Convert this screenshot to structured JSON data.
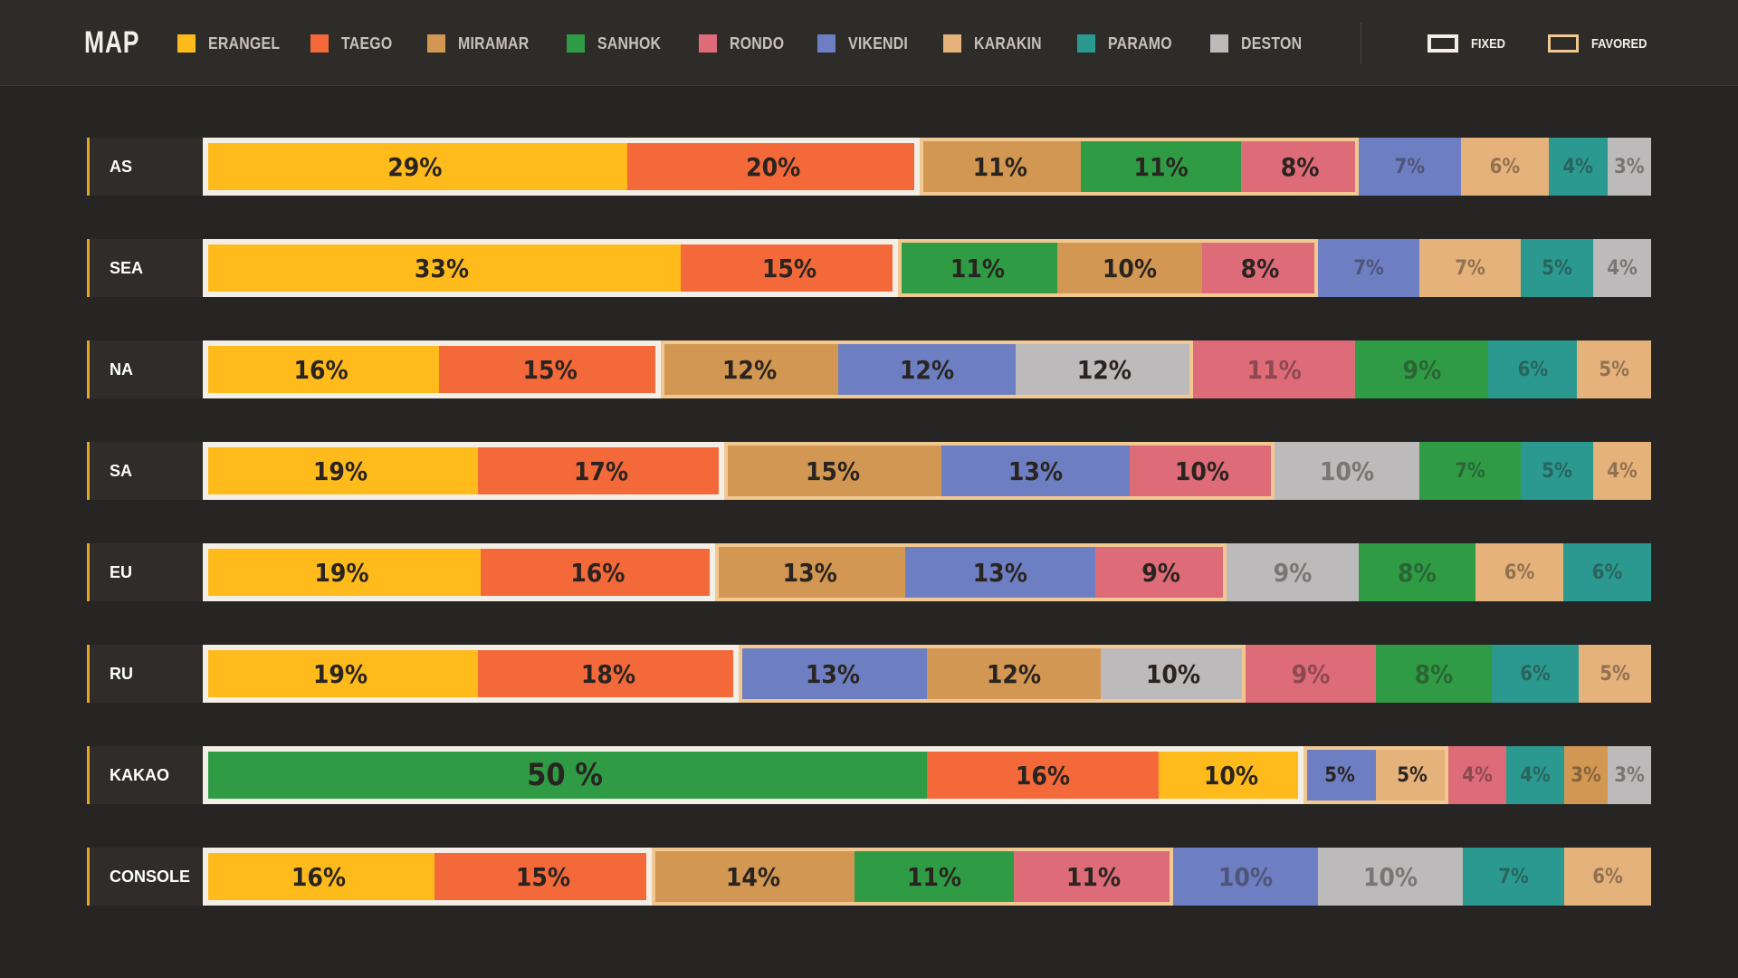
{
  "title": "MAP",
  "legend": [
    {
      "name": "ERANGEL",
      "color": "#ffbb1c"
    },
    {
      "name": "TAEGO",
      "color": "#f4693a"
    },
    {
      "name": "MIRAMAR",
      "color": "#d29752"
    },
    {
      "name": "SANHOK",
      "color": "#2f9c45"
    },
    {
      "name": "RONDO",
      "color": "#de6b78"
    },
    {
      "name": "VIKENDI",
      "color": "#6d7fc2"
    },
    {
      "name": "KARAKIN",
      "color": "#e6b27b"
    },
    {
      "name": "PARAMO",
      "color": "#2b9990"
    },
    {
      "name": "DESTON",
      "color": "#bdbabb"
    }
  ],
  "key": {
    "fixed": "FIXED",
    "favored": "FAVORED"
  },
  "chart_data": {
    "type": "bar",
    "orientation": "horizontal-stacked",
    "unit": "%",
    "rows": [
      {
        "label": "AS",
        "fixed": 2,
        "favored": 3,
        "segments": [
          {
            "map": "ERANGEL",
            "value": 29,
            "text": "29%"
          },
          {
            "map": "TAEGO",
            "value": 20,
            "text": "20%"
          },
          {
            "map": "MIRAMAR",
            "value": 11,
            "text": "11%"
          },
          {
            "map": "SANHOK",
            "value": 11,
            "text": "11%"
          },
          {
            "map": "RONDO",
            "value": 8,
            "text": "8%"
          },
          {
            "map": "VIKENDI",
            "value": 7,
            "text": "7%"
          },
          {
            "map": "KARAKIN",
            "value": 6,
            "text": "6%"
          },
          {
            "map": "PARAMO",
            "value": 4,
            "text": "4%"
          },
          {
            "map": "DESTON",
            "value": 3,
            "text": "3%"
          }
        ]
      },
      {
        "label": "SEA",
        "fixed": 2,
        "favored": 3,
        "segments": [
          {
            "map": "ERANGEL",
            "value": 33,
            "text": "33%"
          },
          {
            "map": "TAEGO",
            "value": 15,
            "text": "15%"
          },
          {
            "map": "SANHOK",
            "value": 11,
            "text": "11%"
          },
          {
            "map": "MIRAMAR",
            "value": 10,
            "text": "10%"
          },
          {
            "map": "RONDO",
            "value": 8,
            "text": "8%"
          },
          {
            "map": "VIKENDI",
            "value": 7,
            "text": "7%"
          },
          {
            "map": "KARAKIN",
            "value": 7,
            "text": "7%"
          },
          {
            "map": "PARAMO",
            "value": 5,
            "text": "5%"
          },
          {
            "map": "DESTON",
            "value": 4,
            "text": "4%"
          }
        ]
      },
      {
        "label": "NA",
        "fixed": 2,
        "favored": 3,
        "segments": [
          {
            "map": "ERANGEL",
            "value": 16,
            "text": "16%"
          },
          {
            "map": "TAEGO",
            "value": 15,
            "text": "15%"
          },
          {
            "map": "MIRAMAR",
            "value": 12,
            "text": "12%"
          },
          {
            "map": "VIKENDI",
            "value": 12,
            "text": "12%"
          },
          {
            "map": "DESTON",
            "value": 12,
            "text": "12%"
          },
          {
            "map": "RONDO",
            "value": 11,
            "text": "11%"
          },
          {
            "map": "SANHOK",
            "value": 9,
            "text": "9%"
          },
          {
            "map": "PARAMO",
            "value": 6,
            "text": "6%"
          },
          {
            "map": "KARAKIN",
            "value": 5,
            "text": "5%"
          }
        ]
      },
      {
        "label": "SA",
        "fixed": 2,
        "favored": 3,
        "segments": [
          {
            "map": "ERANGEL",
            "value": 19,
            "text": "19%"
          },
          {
            "map": "TAEGO",
            "value": 17,
            "text": "17%"
          },
          {
            "map": "MIRAMAR",
            "value": 15,
            "text": "15%"
          },
          {
            "map": "VIKENDI",
            "value": 13,
            "text": "13%"
          },
          {
            "map": "RONDO",
            "value": 10,
            "text": "10%"
          },
          {
            "map": "DESTON",
            "value": 10,
            "text": "10%"
          },
          {
            "map": "SANHOK",
            "value": 7,
            "text": "7%"
          },
          {
            "map": "PARAMO",
            "value": 5,
            "text": "5%"
          },
          {
            "map": "KARAKIN",
            "value": 4,
            "text": "4%"
          }
        ]
      },
      {
        "label": "EU",
        "fixed": 2,
        "favored": 3,
        "segments": [
          {
            "map": "ERANGEL",
            "value": 19,
            "text": "19%"
          },
          {
            "map": "TAEGO",
            "value": 16,
            "text": "16%"
          },
          {
            "map": "MIRAMAR",
            "value": 13,
            "text": "13%"
          },
          {
            "map": "VIKENDI",
            "value": 13,
            "text": "13%"
          },
          {
            "map": "RONDO",
            "value": 9,
            "text": "9%"
          },
          {
            "map": "DESTON",
            "value": 9,
            "text": "9%"
          },
          {
            "map": "SANHOK",
            "value": 8,
            "text": "8%"
          },
          {
            "map": "KARAKIN",
            "value": 6,
            "text": "6%"
          },
          {
            "map": "PARAMO",
            "value": 6,
            "text": "6%"
          }
        ]
      },
      {
        "label": "RU",
        "fixed": 2,
        "favored": 3,
        "segments": [
          {
            "map": "ERANGEL",
            "value": 19,
            "text": "19%"
          },
          {
            "map": "TAEGO",
            "value": 18,
            "text": "18%"
          },
          {
            "map": "VIKENDI",
            "value": 13,
            "text": "13%"
          },
          {
            "map": "MIRAMAR",
            "value": 12,
            "text": "12%"
          },
          {
            "map": "DESTON",
            "value": 10,
            "text": "10%"
          },
          {
            "map": "RONDO",
            "value": 9,
            "text": "9%"
          },
          {
            "map": "SANHOK",
            "value": 8,
            "text": "8%"
          },
          {
            "map": "PARAMO",
            "value": 6,
            "text": "6%"
          },
          {
            "map": "KARAKIN",
            "value": 5,
            "text": "5%"
          }
        ]
      },
      {
        "label": "KAKAO",
        "fixed": 3,
        "favored": 2,
        "segments": [
          {
            "map": "SANHOK",
            "value": 50,
            "text": "50 %"
          },
          {
            "map": "TAEGO",
            "value": 16,
            "text": "16%"
          },
          {
            "map": "ERANGEL",
            "value": 10,
            "text": "10%"
          },
          {
            "map": "VIKENDI",
            "value": 5,
            "text": "5%"
          },
          {
            "map": "KARAKIN",
            "value": 5,
            "text": "5%"
          },
          {
            "map": "RONDO",
            "value": 4,
            "text": "4%"
          },
          {
            "map": "PARAMO",
            "value": 4,
            "text": "4%"
          },
          {
            "map": "MIRAMAR",
            "value": 3,
            "text": "3%"
          },
          {
            "map": "DESTON",
            "value": 3,
            "text": "3%"
          }
        ]
      },
      {
        "label": "CONSOLE",
        "fixed": 2,
        "favored": 3,
        "segments": [
          {
            "map": "ERANGEL",
            "value": 16,
            "text": "16%"
          },
          {
            "map": "TAEGO",
            "value": 15,
            "text": "15%"
          },
          {
            "map": "MIRAMAR",
            "value": 14,
            "text": "14%"
          },
          {
            "map": "SANHOK",
            "value": 11,
            "text": "11%"
          },
          {
            "map": "RONDO",
            "value": 11,
            "text": "11%"
          },
          {
            "map": "VIKENDI",
            "value": 10,
            "text": "10%"
          },
          {
            "map": "DESTON",
            "value": 10,
            "text": "10%"
          },
          {
            "map": "PARAMO",
            "value": 7,
            "text": "7%"
          },
          {
            "map": "KARAKIN",
            "value": 6,
            "text": "6%"
          }
        ]
      }
    ]
  }
}
